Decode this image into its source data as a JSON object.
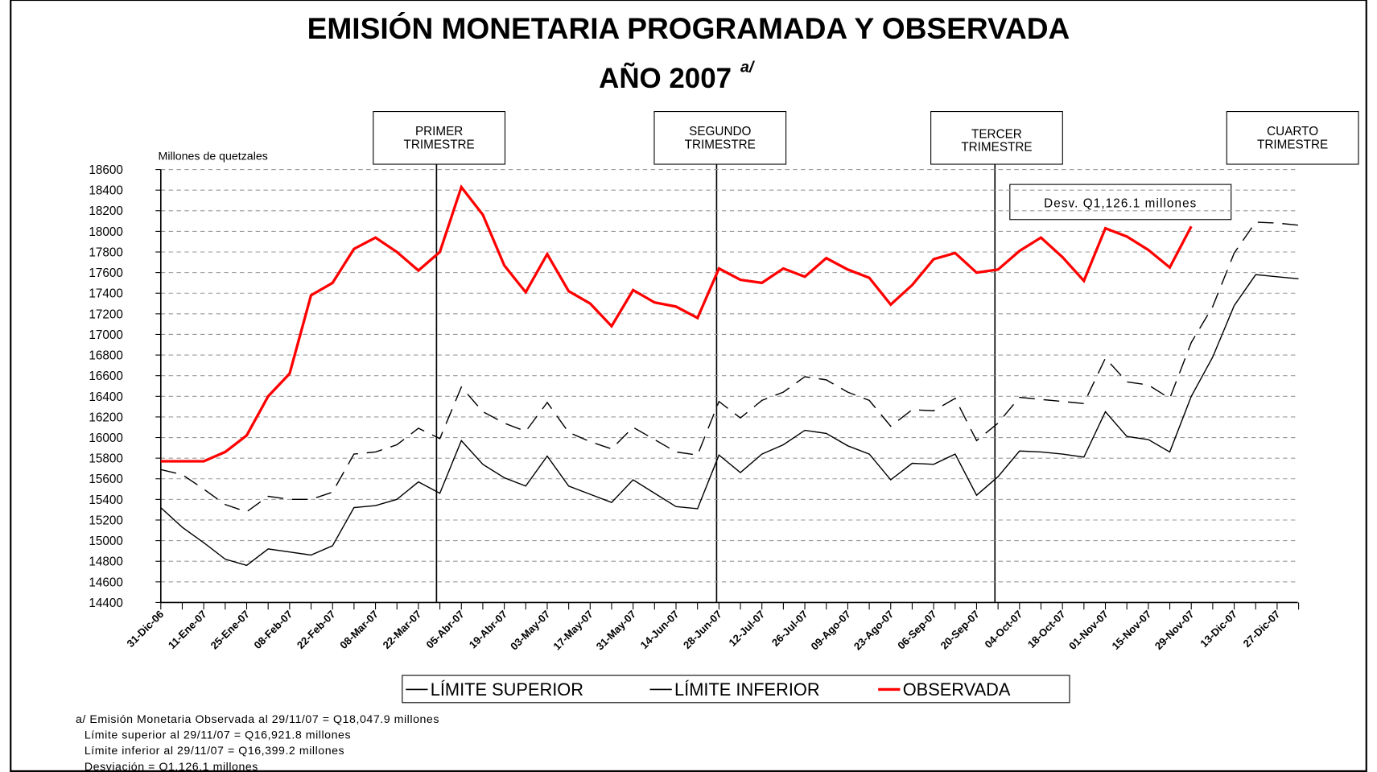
{
  "chart_data": {
    "type": "line",
    "title": "EMISIÓN MONETARIA PROGRAMADA Y OBSERVADA",
    "subtitle": "AÑO 2007",
    "subtitle_note": "a/",
    "y_label": "Millones de quetzales",
    "annotations": [
      "PRIMER TRIMESTRE",
      "SEGUNDO TRIMESTRE",
      "TERCER TRIMESTRE",
      "CUARTO TRIMESTRE",
      "Desv. Q1,126.1 millones"
    ],
    "footnotes": [
      "a/ Emisión Monetaria Observada al 29/11/07 = Q18,047.9 millones",
      "Límite superior al 29/11/07 = Q16,921.8 millones",
      "Límite inferior al 29/11/07 = Q16,399.2 millones",
      "Desviación = Q1,126.1 millones"
    ],
    "categories": [
      "31-Dic-06",
      null,
      "11-Ene-07",
      null,
      "25-Ene-07",
      null,
      "08-Feb-07",
      null,
      "22-Feb-07",
      null,
      "08-Mar-07",
      null,
      "22-Mar-07",
      null,
      "05-Abr-07",
      null,
      "19-Abr-07",
      null,
      "03-May-07",
      null,
      "17-May-07",
      null,
      "31-May-07",
      null,
      "14-Jun-07",
      null,
      "28-Jun-07",
      null,
      "12-Jul-07",
      null,
      "26-Jul-07",
      null,
      "09-Ago-07",
      null,
      "23-Ago-07",
      null,
      "06-Sep-07",
      null,
      "20-Sep-07",
      null,
      "04-Oct-07",
      null,
      "18-Oct-07",
      null,
      "01-Nov-07",
      null,
      "15-Nov-07",
      null,
      "29-Nov-07",
      null,
      "13-Dic-07",
      null,
      "27-Dic-07",
      null
    ],
    "series": [
      {
        "name": "LÍMITE SUPERIOR",
        "color": "#000000",
        "dashed": true,
        "values": [
          15690,
          15640,
          15500,
          15350,
          15280,
          15430,
          15400,
          15400,
          15470,
          15840,
          15860,
          15930,
          16090,
          15990,
          16490,
          16250,
          16140,
          16060,
          16340,
          16050,
          15960,
          15890,
          16100,
          15980,
          15860,
          15830,
          16350,
          16190,
          16360,
          16440,
          16590,
          16560,
          16440,
          16360,
          16110,
          16270,
          16260,
          16380,
          15970,
          16140,
          16390,
          16370,
          16350,
          16330,
          16770,
          16540,
          16510,
          16380,
          16921.8,
          17270,
          17790,
          18090,
          18080,
          18060
        ]
      },
      {
        "name": "LÍMITE INFERIOR",
        "color": "#000000",
        "dashed": false,
        "values": [
          15320,
          15130,
          14980,
          14820,
          14760,
          14920,
          14890,
          14860,
          14950,
          15320,
          15340,
          15400,
          15570,
          15460,
          15970,
          15740,
          15610,
          15530,
          15820,
          15530,
          15450,
          15370,
          15590,
          15460,
          15330,
          15310,
          15830,
          15660,
          15840,
          15930,
          16070,
          16040,
          15920,
          15840,
          15590,
          15750,
          15740,
          15840,
          15440,
          15620,
          15870,
          15860,
          15840,
          15810,
          16250,
          16010,
          15980,
          15860,
          16399.2,
          16780,
          17280,
          17580,
          17560,
          17540
        ]
      },
      {
        "name": "OBSERVADA",
        "color": "#ff0000",
        "dashed": false,
        "values": [
          15770,
          15770,
          15770,
          15860,
          16020,
          16400,
          16620,
          17380,
          17500,
          17830,
          17940,
          17800,
          17620,
          17800,
          18430,
          18160,
          17670,
          17410,
          17780,
          17420,
          17300,
          17080,
          17430,
          17310,
          17270,
          17160,
          17640,
          17530,
          17500,
          17640,
          17560,
          17740,
          17630,
          17550,
          17290,
          17480,
          17730,
          17790,
          17600,
          17630,
          17810,
          17940,
          17750,
          17520,
          18030,
          17950,
          17820,
          17650,
          18047.9,
          null,
          null,
          null,
          null,
          null
        ]
      }
    ],
    "ylim": [
      14400,
      18600
    ],
    "yticks": [
      14400,
      14600,
      14800,
      15000,
      15200,
      15400,
      15600,
      15800,
      16000,
      16200,
      16400,
      16600,
      16800,
      17000,
      17200,
      17400,
      17600,
      17800,
      18000,
      18200,
      18400,
      18600
    ],
    "grid": true
  }
}
